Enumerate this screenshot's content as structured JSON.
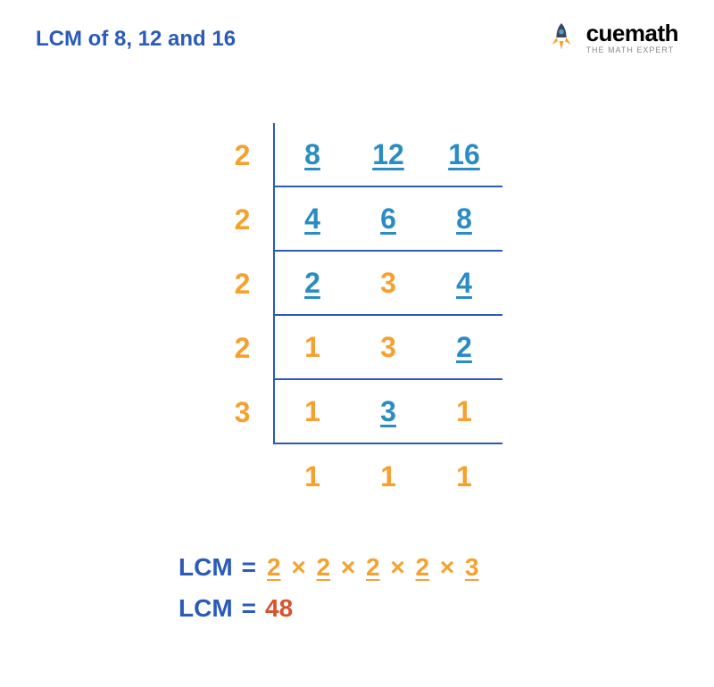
{
  "title": "LCM of 8, 12 and 16",
  "logo": {
    "name": "cuemath",
    "cue": "cue",
    "math": "math",
    "tagline": "THE MATH EXPERT"
  },
  "colors": {
    "orange": "#f6a12e",
    "blue": "#2a8cc4",
    "darkblue": "#2a5bb8",
    "logoGrey": "#3a4860",
    "result": "#d6532e"
  },
  "table": {
    "rows": [
      {
        "divisor": "2",
        "divisorColor": "orange",
        "cells": [
          {
            "v": "8",
            "color": "blue",
            "ul": true
          },
          {
            "v": "12",
            "color": "blue",
            "ul": true
          },
          {
            "v": "16",
            "color": "blue",
            "ul": true
          }
        ]
      },
      {
        "divisor": "2",
        "divisorColor": "orange",
        "cells": [
          {
            "v": "4",
            "color": "blue",
            "ul": true
          },
          {
            "v": "6",
            "color": "blue",
            "ul": true
          },
          {
            "v": "8",
            "color": "blue",
            "ul": true
          }
        ]
      },
      {
        "divisor": "2",
        "divisorColor": "orange",
        "cells": [
          {
            "v": "2",
            "color": "blue",
            "ul": true
          },
          {
            "v": "3",
            "color": "orange",
            "ul": false
          },
          {
            "v": "4",
            "color": "blue",
            "ul": true
          }
        ]
      },
      {
        "divisor": "2",
        "divisorColor": "orange",
        "cells": [
          {
            "v": "1",
            "color": "orange",
            "ul": false
          },
          {
            "v": "3",
            "color": "orange",
            "ul": false
          },
          {
            "v": "2",
            "color": "blue",
            "ul": true
          }
        ]
      },
      {
        "divisor": "3",
        "divisorColor": "orange",
        "cells": [
          {
            "v": "1",
            "color": "orange",
            "ul": false
          },
          {
            "v": "3",
            "color": "blue",
            "ul": true
          },
          {
            "v": "1",
            "color": "orange",
            "ul": false
          }
        ]
      },
      {
        "divisor": "",
        "divisorColor": "orange",
        "cells": [
          {
            "v": "1",
            "color": "orange",
            "ul": false
          },
          {
            "v": "1",
            "color": "orange",
            "ul": false
          },
          {
            "v": "1",
            "color": "orange",
            "ul": false
          }
        ]
      }
    ]
  },
  "lcm": {
    "label": "LCM",
    "eq": "=",
    "factors": [
      "2",
      "2",
      "2",
      "2",
      "3"
    ],
    "sep": "×",
    "result": "48"
  }
}
